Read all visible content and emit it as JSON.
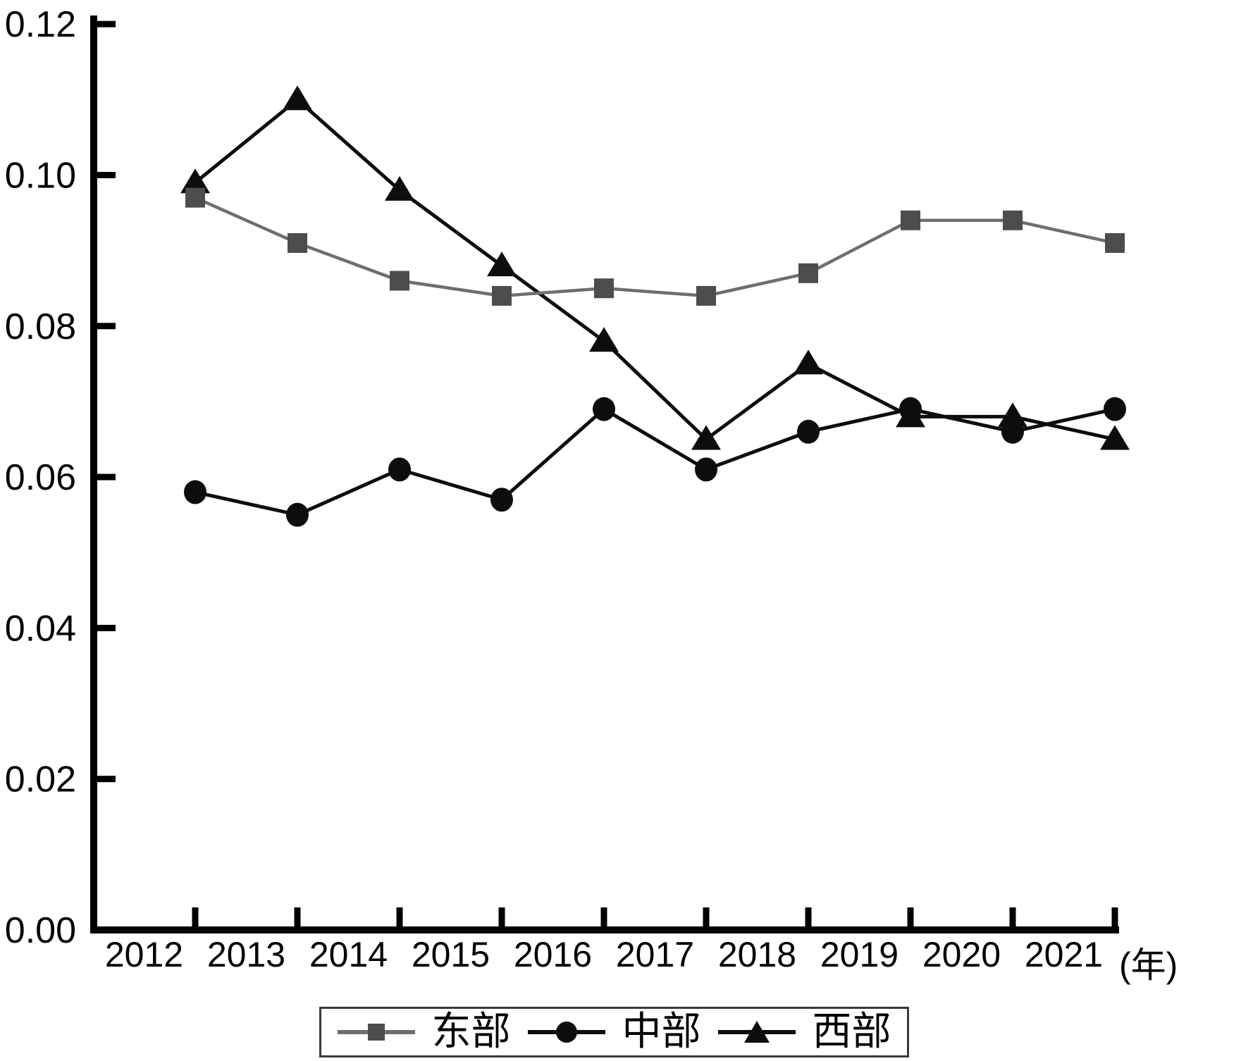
{
  "figure": {
    "background": "#ffffff",
    "axis_color": "#000000"
  },
  "chart_data": {
    "type": "line",
    "title": "",
    "xlabel": "",
    "ylabel": "",
    "x_unit_label": "(年)",
    "categories": [
      "2012",
      "2013",
      "2014",
      "2015",
      "2016",
      "2017",
      "2018",
      "2019",
      "2020",
      "2021"
    ],
    "series": [
      {
        "name": "东部",
        "id": "east",
        "marker": "square",
        "marker_color": "#4d4d4d",
        "line_color": "#6e6e6e",
        "line_width": 4.5,
        "values": [
          0.097,
          0.091,
          0.086,
          0.084,
          0.085,
          0.084,
          0.087,
          0.094,
          0.094,
          0.091
        ]
      },
      {
        "name": "中部",
        "id": "central",
        "marker": "circle",
        "marker_color": "#0d0d0d",
        "line_color": "#0d0d0d",
        "line_width": 5,
        "values": [
          0.058,
          0.055,
          0.061,
          0.057,
          0.069,
          0.061,
          0.066,
          0.069,
          0.066,
          0.069
        ]
      },
      {
        "name": "西部",
        "id": "west",
        "marker": "triangle",
        "marker_color": "#0d0d0d",
        "line_color": "#0d0d0d",
        "line_width": 5,
        "values": [
          0.099,
          0.11,
          0.098,
          0.088,
          0.078,
          0.065,
          0.075,
          0.068,
          0.068,
          0.065
        ]
      }
    ],
    "ylim": [
      0.0,
      0.12
    ],
    "ytick_labels": [
      "0.00",
      "0.02",
      "0.04",
      "0.06",
      "0.08",
      "0.10",
      "0.12"
    ],
    "grid": false,
    "legend_position": "bottom"
  }
}
